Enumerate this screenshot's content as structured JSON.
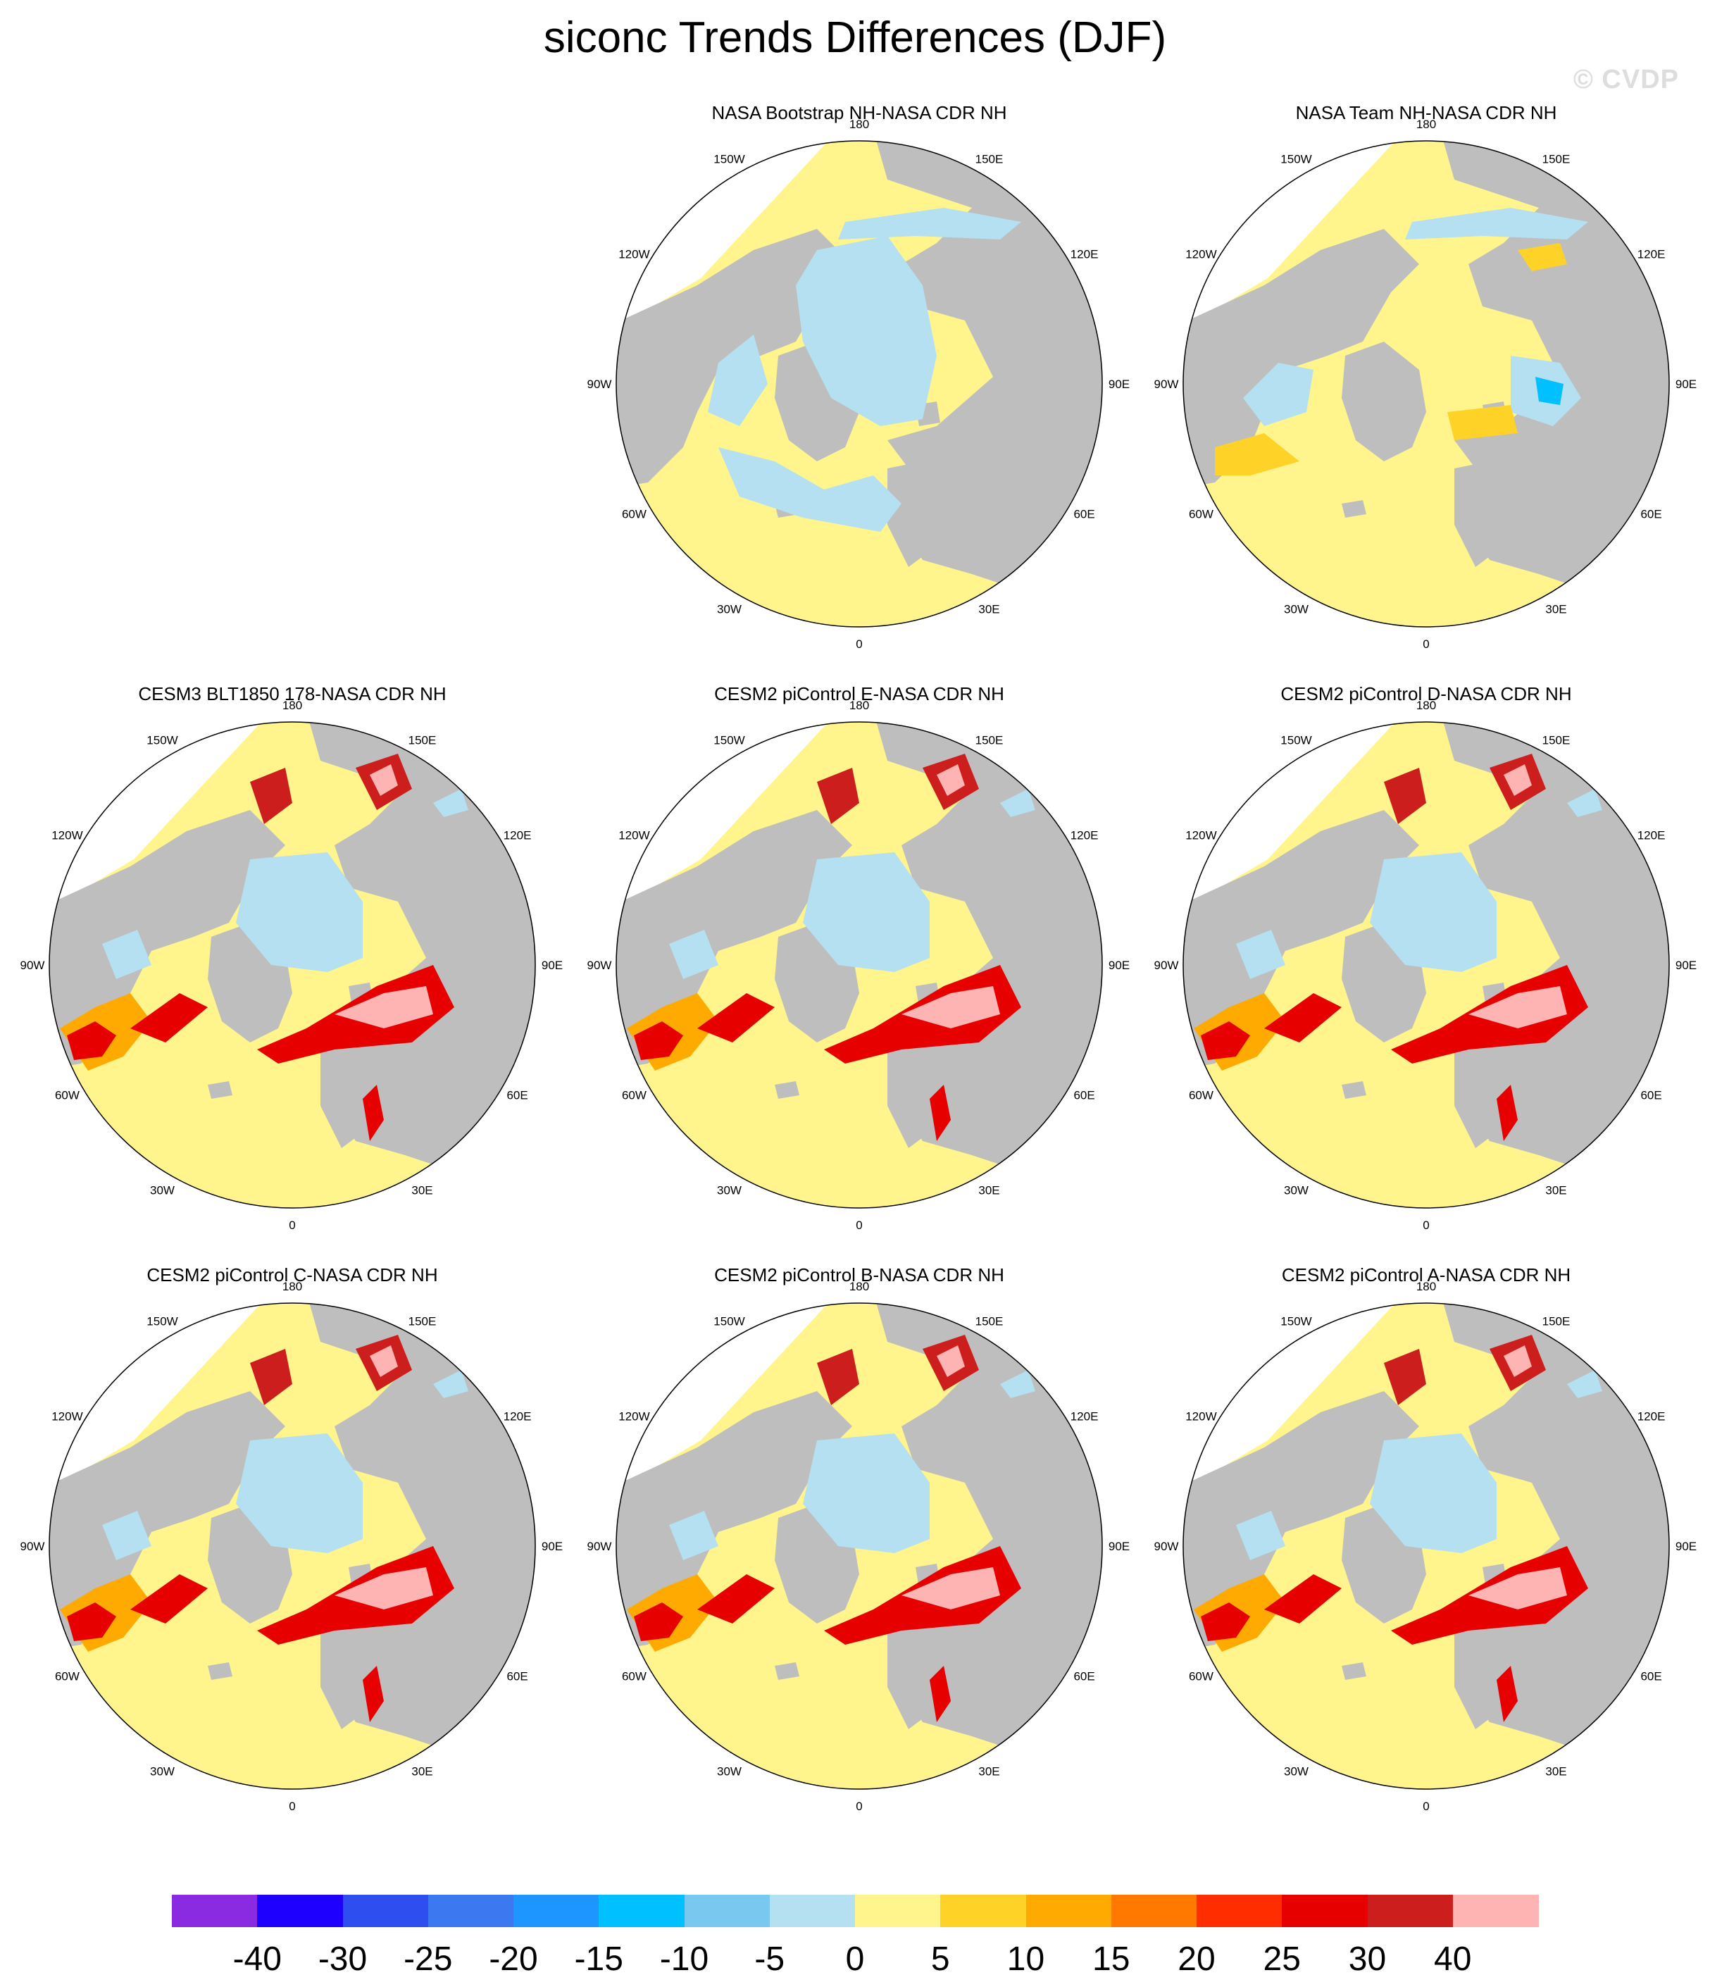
{
  "title": "siconc Trends Differences (DJF)",
  "watermark": "© CVDP",
  "longitude_labels": [
    "180",
    "150E",
    "120E",
    "90E",
    "60E",
    "30E",
    "0",
    "30W",
    "60W",
    "90W",
    "120W",
    "150W"
  ],
  "panels": [
    {
      "title": "NASA Bootstrap NH-NASA CDR NH",
      "pattern": "bootstrap"
    },
    {
      "title": "NASA Team NH-NASA CDR NH",
      "pattern": "team"
    },
    {
      "title": "CESM3 BLT1850 178-NASA CDR NH",
      "pattern": "model"
    },
    {
      "title": "CESM2 piControl E-NASA CDR NH",
      "pattern": "model"
    },
    {
      "title": "CESM2 piControl D-NASA CDR NH",
      "pattern": "model"
    },
    {
      "title": "CESM2 piControl C-NASA CDR NH",
      "pattern": "model"
    },
    {
      "title": "CESM2 piControl B-NASA CDR NH",
      "pattern": "model"
    },
    {
      "title": "CESM2 piControl A-NASA CDR NH",
      "pattern": "model"
    }
  ],
  "colorbar": {
    "labels": [
      "-40",
      "-30",
      "-25",
      "-20",
      "-15",
      "-10",
      "-5",
      "0",
      "5",
      "10",
      "15",
      "20",
      "25",
      "30",
      "40"
    ],
    "colors": [
      "#8a2be2",
      "#1e00ff",
      "#2e4ef0",
      "#3c78f0",
      "#1e96ff",
      "#00c0ff",
      "#78c8f0",
      "#b4e0f2",
      "#fff58c",
      "#ffd228",
      "#ffaa00",
      "#ff7800",
      "#ff2d00",
      "#e60000",
      "#cd1e1e",
      "#ffb4b4"
    ]
  },
  "colors": {
    "land": "#bebebe",
    "missing": "#ffffff",
    "ocean_base": "#fff58c"
  }
}
